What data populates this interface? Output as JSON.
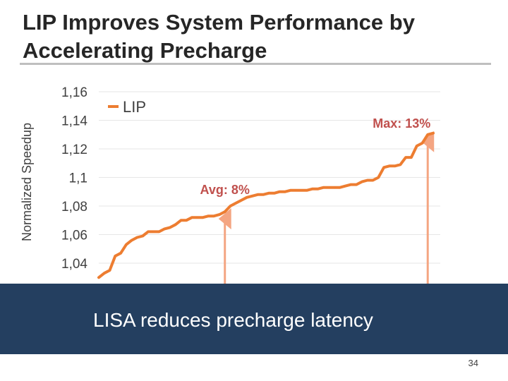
{
  "slide": {
    "title": "LIP Improves System Performance by Accelerating Precharge",
    "banner_text": "LISA reduces precharge latency",
    "page_number": "34"
  },
  "colors": {
    "series": "#ed7d31",
    "arrow": "#f4a582",
    "banner": "#243f60",
    "title_rule": "#bfbfbf",
    "text": "#404040"
  },
  "chart_data": {
    "type": "line",
    "ylabel": "Normalized Speedup",
    "xlabel": "",
    "title": "",
    "ylim": [
      1.03,
      1.16
    ],
    "yticks": [
      1.04,
      1.06,
      1.08,
      1.1,
      1.12,
      1.14,
      1.16
    ],
    "ytick_labels": [
      "1,04",
      "1,06",
      "1,08",
      "1,1",
      "1,12",
      "1,14",
      "1,16"
    ],
    "legend": "top-left",
    "series": [
      {
        "name": "LIP",
        "x": [
          1,
          2,
          3,
          4,
          5,
          6,
          7,
          8,
          9,
          10,
          11,
          12,
          13,
          14,
          15,
          16,
          17,
          18,
          19,
          20,
          21,
          22,
          23,
          24,
          25,
          26,
          27,
          28,
          29,
          30,
          31,
          32,
          33,
          34,
          35,
          36,
          37,
          38,
          39,
          40,
          41,
          42,
          43,
          44,
          45,
          46,
          47,
          48,
          49,
          50,
          51,
          52,
          53,
          54,
          55,
          56,
          57,
          58,
          59,
          60,
          61,
          62
        ],
        "values": [
          1.03,
          1.033,
          1.035,
          1.045,
          1.047,
          1.053,
          1.056,
          1.058,
          1.059,
          1.062,
          1.062,
          1.062,
          1.064,
          1.065,
          1.067,
          1.07,
          1.07,
          1.072,
          1.072,
          1.072,
          1.073,
          1.073,
          1.074,
          1.076,
          1.08,
          1.082,
          1.084,
          1.086,
          1.087,
          1.088,
          1.088,
          1.089,
          1.089,
          1.09,
          1.09,
          1.091,
          1.091,
          1.091,
          1.091,
          1.092,
          1.092,
          1.093,
          1.093,
          1.093,
          1.093,
          1.094,
          1.095,
          1.095,
          1.097,
          1.098,
          1.098,
          1.1,
          1.107,
          1.108,
          1.108,
          1.109,
          1.114,
          1.114,
          1.122,
          1.124,
          1.13,
          1.131
        ]
      }
    ],
    "annotations": [
      {
        "text": "Avg: 8%",
        "x": 24
      },
      {
        "text": "Max: 13%",
        "x": 61
      }
    ]
  }
}
